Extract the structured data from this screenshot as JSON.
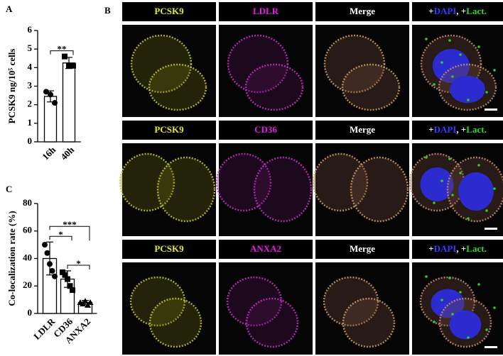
{
  "chart_data": [
    {
      "type": "bar",
      "panel_label": "A",
      "ylabel": "PCSK9 ng/10⁵ cells",
      "categories": [
        "16h",
        "40h"
      ],
      "values": [
        2.45,
        4.25
      ],
      "errors": [
        0.3,
        0.3
      ],
      "points": [
        [
          2.7,
          2.55,
          2.1
        ],
        [
          4.6,
          4.1,
          4.1
        ]
      ],
      "markers": [
        "circle",
        "square"
      ],
      "color": "#ffffff",
      "ylim": [
        0,
        6
      ],
      "yticks": [
        0,
        1,
        2,
        3,
        4,
        5,
        6
      ],
      "comparisons": [
        {
          "label": "**",
          "between": [
            "16h",
            "40h"
          ]
        }
      ]
    },
    {
      "type": "bar",
      "panel_label": "C",
      "ylabel": "Co-localization rate (%)",
      "categories": [
        "LDLR",
        "CD36",
        "ANXA2"
      ],
      "values": [
        40,
        25,
        8
      ],
      "errors": [
        12,
        6,
        1.5
      ],
      "points": [
        [
          50,
          44,
          36,
          31,
          27
        ],
        [
          30,
          28,
          25,
          20,
          17
        ],
        [
          8,
          7,
          9,
          6,
          8
        ]
      ],
      "markers": [
        "circle",
        "square",
        "triangle"
      ],
      "color": "#ffffff",
      "ylim": [
        0,
        80
      ],
      "yticks": [
        0,
        20,
        40,
        60,
        80
      ],
      "comparisons": [
        {
          "label": "*",
          "between": [
            "LDLR",
            "CD36"
          ]
        },
        {
          "label": "***",
          "between": [
            "LDLR",
            "ANXA2"
          ]
        },
        {
          "label": "*",
          "between": [
            "CD36",
            "ANXA2"
          ]
        }
      ]
    }
  ],
  "microscopy": {
    "panel_label": "B",
    "rows": [
      {
        "labels": [
          "PCSK9",
          "LDLR",
          "Merge"
        ],
        "overlay": [
          "+",
          "DAPI",
          ", +",
          "Lact."
        ]
      },
      {
        "labels": [
          "PCSK9",
          "CD36",
          "Merge"
        ],
        "overlay": [
          "+",
          "DAPI",
          ", +",
          "Lact."
        ]
      },
      {
        "labels": [
          "PCSK9",
          "ANXA2",
          "Merge"
        ],
        "overlay": [
          "+",
          "DAPI",
          ", +",
          "Lact."
        ]
      }
    ]
  }
}
